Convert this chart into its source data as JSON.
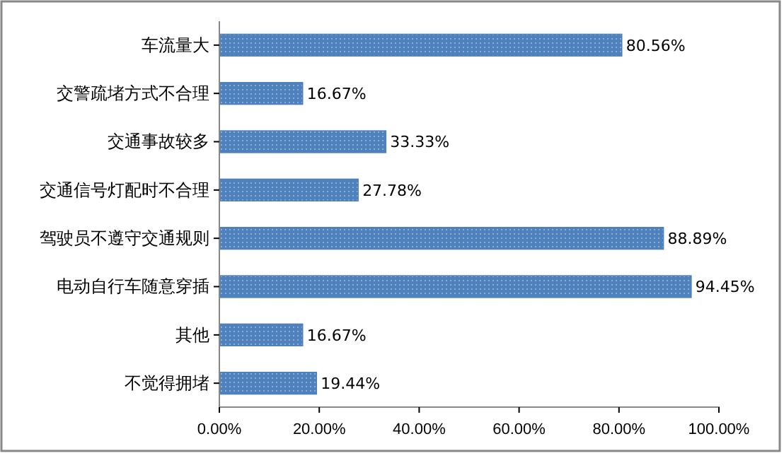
{
  "chart_data": {
    "type": "bar",
    "orientation": "horizontal",
    "categories": [
      "车流量大",
      "交警疏堵方式不合理",
      "交通事故较多",
      "交通信号灯配时不合理",
      "驾驶员不遵守交通规则",
      "电动自行车随意穿插",
      "其他",
      "不觉得拥堵"
    ],
    "values": [
      80.56,
      16.67,
      33.33,
      27.78,
      88.89,
      94.45,
      16.67,
      19.44
    ],
    "value_labels": [
      "80.56%",
      "16.67%",
      "33.33%",
      "27.78%",
      "88.89%",
      "94.45%",
      "16.67%",
      "19.44%"
    ],
    "color": "#4f81bd",
    "xlim": [
      0,
      100
    ],
    "xticks": [
      {
        "value": 0,
        "label": "0.00%"
      },
      {
        "value": 20,
        "label": "20.00%"
      },
      {
        "value": 40,
        "label": "40.00%"
      },
      {
        "value": 60,
        "label": "60.00%"
      },
      {
        "value": 80,
        "label": "80.00%"
      },
      {
        "value": 100,
        "label": "100.00%"
      }
    ],
    "grid": false
  }
}
